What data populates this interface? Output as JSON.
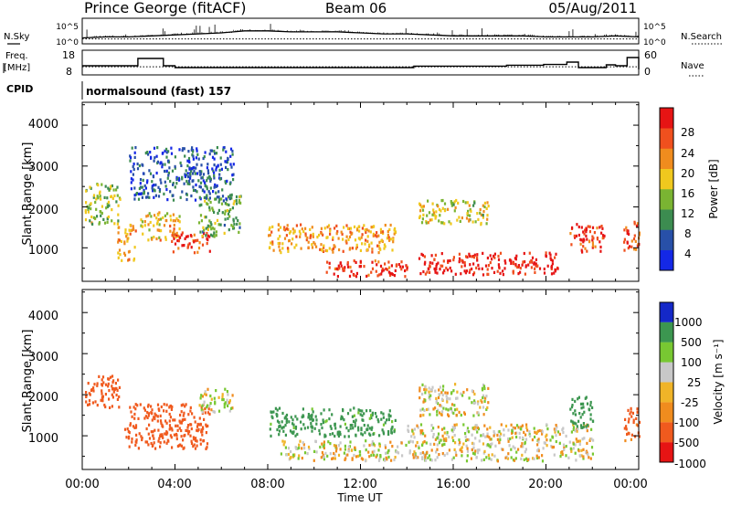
{
  "header": {
    "station": "Prince George (fitACF)",
    "beam": "Beam 06",
    "date": "05/Aug/2011"
  },
  "top_panel": {
    "left_label": "N.Sky",
    "right_label": "N.Search",
    "left_ticks": [
      "10^5",
      "10^0"
    ],
    "right_ticks": [
      "10^5",
      "10^0"
    ]
  },
  "freq_panel": {
    "left_label_1": "Freq.",
    "left_label_2": "[MHz]",
    "right_label": "Nave",
    "left_ticks": [
      "18",
      "8"
    ],
    "right_ticks": [
      "60",
      "0"
    ]
  },
  "cpid": {
    "label": "CPID",
    "value": "normalsound (fast) 157"
  },
  "power_panel": {
    "ylabel": "Slant Range [km]",
    "yticks": [
      "4000",
      "3000",
      "2000",
      "1000"
    ],
    "colorbar_label": "Power [dB]",
    "colorbar_ticks": [
      "28",
      "24",
      "20",
      "16",
      "12",
      "8",
      "4"
    ]
  },
  "velocity_panel": {
    "ylabel": "Slant Range [km]",
    "yticks": [
      "4000",
      "3000",
      "2000",
      "1000"
    ],
    "colorbar_label": "Velocity [m s⁻¹]",
    "colorbar_ticks": [
      "1000",
      "500",
      "100",
      "25",
      "-25",
      "-100",
      "-500",
      "-1000"
    ]
  },
  "xaxis": {
    "label": "Time UT",
    "ticks": [
      "00:00",
      "04:00",
      "08:00",
      "12:00",
      "16:00",
      "20:00",
      "00:00"
    ]
  },
  "colors": {
    "power_scale": [
      "#1428e6",
      "#2850a8",
      "#3c8c50",
      "#7ab432",
      "#f0c81e",
      "#f08c1e",
      "#f0501e",
      "#e61414"
    ],
    "velocity_scale": [
      "#e61414",
      "#f05a1e",
      "#f08c1e",
      "#f0b428",
      "#c8c8c8",
      "#78c832",
      "#3c9650",
      "#1428c8"
    ],
    "ground_scatter": "#c0c0c0"
  },
  "chart_data": [
    {
      "type": "line",
      "title": "Prince George (fitACF) Beam 06 05/Aug/2011",
      "panel": "noise",
      "x_unit": "hours UT",
      "xlim": [
        0,
        24
      ],
      "series": [
        {
          "name": "N.Sky",
          "x": [
            0,
            1,
            2,
            3,
            4,
            5,
            6,
            7,
            8,
            9,
            10,
            11,
            12,
            13,
            14,
            15,
            16,
            17,
            18,
            19,
            20,
            21,
            22,
            23,
            24
          ],
          "values": [
            0.25,
            0.3,
            0.3,
            0.35,
            0.4,
            0.45,
            0.5,
            0.6,
            0.6,
            0.55,
            0.55,
            0.55,
            0.5,
            0.45,
            0.45,
            0.4,
            0.35,
            0.35,
            0.35,
            0.35,
            0.3,
            0.3,
            0.3,
            0.35,
            0.3
          ]
        },
        {
          "name": "N.Search",
          "x": [
            0,
            24
          ],
          "values": [
            0.2,
            0.2
          ]
        }
      ]
    },
    {
      "type": "line",
      "panel": "frequency",
      "x_unit": "hours UT",
      "ylabel": "Freq. [MHz]",
      "ylim": [
        8,
        18
      ],
      "y2label": "Nave",
      "y2lim": [
        0,
        60
      ],
      "series": [
        {
          "name": "Freq.",
          "x": [
            0,
            2.1,
            2.4,
            3.5,
            4.0,
            13.8,
            14.3,
            17.8,
            18.3,
            19.4,
            19.9,
            20.3,
            20.9,
            21.4,
            22.3,
            22.6,
            23.0,
            23.5,
            24
          ],
          "values": [
            12.5,
            12.5,
            16.5,
            12.5,
            11.5,
            11.5,
            12.3,
            12.3,
            12.8,
            12.8,
            13.2,
            13.2,
            14.5,
            11.5,
            11.5,
            13.0,
            12.5,
            17.0,
            10.5
          ]
        },
        {
          "name": "Nave",
          "x": [
            0,
            24
          ],
          "values": [
            19,
            19
          ]
        }
      ]
    },
    {
      "type": "heatmap",
      "panel": "power",
      "x_unit": "hours UT",
      "xlim": [
        0,
        24
      ],
      "ylabel": "Slant Range [km]",
      "ylim": [
        180,
        4560
      ],
      "colorbar": {
        "label": "Power [dB]",
        "range": [
          0,
          30
        ],
        "ticks": [
          4,
          8,
          12,
          16,
          20,
          24,
          28
        ]
      },
      "regions": [
        {
          "t": [
            0.1,
            1.6
          ],
          "r": [
            1600,
            2600
          ],
          "value": 14
        },
        {
          "t": [
            1.5,
            2.3
          ],
          "r": [
            700,
            1600
          ],
          "value": 20
        },
        {
          "t": [
            2.5,
            4.2
          ],
          "r": [
            1200,
            1900
          ],
          "value": 18
        },
        {
          "t": [
            3.8,
            5.5
          ],
          "r": [
            900,
            1400
          ],
          "value": 26
        },
        {
          "t": [
            5.0,
            6.8
          ],
          "r": [
            1300,
            2300
          ],
          "value": 12
        },
        {
          "t": [
            8.0,
            13.5
          ],
          "r": [
            900,
            1600
          ],
          "value": 20
        },
        {
          "t": [
            10.5,
            14.0
          ],
          "r": [
            300,
            700
          ],
          "value": 26
        },
        {
          "t": [
            14.5,
            20.5
          ],
          "r": [
            350,
            900
          ],
          "value": 28
        },
        {
          "t": [
            14.5,
            17.5
          ],
          "r": [
            1600,
            2200
          ],
          "value": 16
        },
        {
          "t": [
            21.0,
            22.5
          ],
          "r": [
            900,
            1600
          ],
          "value": 26
        },
        {
          "t": [
            23.3,
            24.0
          ],
          "r": [
            900,
            1700
          ],
          "value": 24
        },
        {
          "t": [
            2.0,
            6.5
          ],
          "r": [
            2200,
            3500
          ],
          "value": 6
        }
      ]
    },
    {
      "type": "heatmap",
      "panel": "velocity",
      "x_unit": "hours UT",
      "xlim": [
        0,
        24
      ],
      "ylabel": "Slant Range [km]",
      "ylim": [
        180,
        4560
      ],
      "colorbar": {
        "label": "Velocity [m s⁻¹]",
        "range": [
          -1000,
          1000
        ],
        "ticks": [
          1000,
          500,
          100,
          25,
          -25,
          -100,
          -500,
          -1000
        ]
      },
      "regions": [
        {
          "t": [
            0.1,
            1.6
          ],
          "r": [
            1700,
            2500
          ],
          "value": -200
        },
        {
          "t": [
            1.8,
            5.5
          ],
          "r": [
            700,
            1800
          ],
          "value": -300
        },
        {
          "t": [
            5.0,
            6.5
          ],
          "r": [
            1600,
            2200
          ],
          "value": 20
        },
        {
          "t": [
            8.0,
            13.5
          ],
          "r": [
            1000,
            1700
          ],
          "value": 150
        },
        {
          "t": [
            8.5,
            14.0
          ],
          "r": [
            400,
            900
          ],
          "value": 0
        },
        {
          "t": [
            14.0,
            22.0
          ],
          "r": [
            400,
            1300
          ],
          "value": 0
        },
        {
          "t": [
            14.5,
            17.5
          ],
          "r": [
            1500,
            2300
          ],
          "value": 0
        },
        {
          "t": [
            21.0,
            22.0
          ],
          "r": [
            1200,
            2000
          ],
          "value": 200
        },
        {
          "t": [
            23.3,
            24.0
          ],
          "r": [
            900,
            1700
          ],
          "value": -150
        }
      ]
    }
  ]
}
